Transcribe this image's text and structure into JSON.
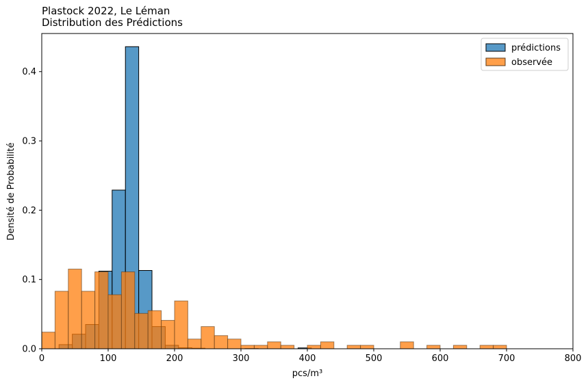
{
  "chart_data": {
    "type": "bar",
    "title_lines": [
      "Plastock 2022, Le Léman",
      "Distribution des Prédictions"
    ],
    "xlabel": "pcs/m³",
    "ylabel": "Densité de Probabilité",
    "xlim": [
      0,
      800
    ],
    "ylim": [
      0,
      0.455
    ],
    "x_ticks": [
      0,
      100,
      200,
      300,
      400,
      500,
      600,
      700,
      800
    ],
    "x_tick_labels": [
      "0",
      "100",
      "200",
      "300",
      "400",
      "500",
      "600",
      "700",
      "800"
    ],
    "y_ticks": [
      0.0,
      0.1,
      0.2,
      0.3,
      0.4
    ],
    "y_tick_labels": [
      "0.0",
      "0.1",
      "0.2",
      "0.3",
      "0.4"
    ],
    "grid": false,
    "legend_position": "top-right",
    "series": [
      {
        "name": "prédictions",
        "color": "#1f77b4",
        "edgecolor": "#000000",
        "alpha": 0.75,
        "bins": [
          {
            "x0": 26,
            "x1": 46,
            "y": 0.006
          },
          {
            "x0": 46,
            "x1": 66,
            "y": 0.021
          },
          {
            "x0": 66,
            "x1": 86,
            "y": 0.035
          },
          {
            "x0": 86,
            "x1": 106,
            "y": 0.112
          },
          {
            "x0": 106,
            "x1": 126,
            "y": 0.229
          },
          {
            "x0": 126,
            "x1": 146,
            "y": 0.436
          },
          {
            "x0": 146,
            "x1": 166,
            "y": 0.113
          },
          {
            "x0": 166,
            "x1": 186,
            "y": 0.032
          },
          {
            "x0": 186,
            "x1": 206,
            "y": 0.005
          },
          {
            "x0": 206,
            "x1": 226,
            "y": 0.0015
          },
          {
            "x0": 226,
            "x1": 246,
            "y": 0.0008
          },
          {
            "x0": 306,
            "x1": 326,
            "y": 0.0004
          },
          {
            "x0": 386,
            "x1": 406,
            "y": 0.0012
          }
        ]
      },
      {
        "name": "observée",
        "color": "#ff7f0e",
        "edgecolor": "#5a3a1a",
        "alpha": 0.75,
        "bins": [
          {
            "x0": 0,
            "x1": 20,
            "y": 0.024
          },
          {
            "x0": 20,
            "x1": 40,
            "y": 0.083
          },
          {
            "x0": 40,
            "x1": 60,
            "y": 0.115
          },
          {
            "x0": 60,
            "x1": 80,
            "y": 0.083
          },
          {
            "x0": 80,
            "x1": 100,
            "y": 0.111
          },
          {
            "x0": 100,
            "x1": 120,
            "y": 0.078
          },
          {
            "x0": 120,
            "x1": 140,
            "y": 0.111
          },
          {
            "x0": 140,
            "x1": 160,
            "y": 0.051
          },
          {
            "x0": 160,
            "x1": 180,
            "y": 0.055
          },
          {
            "x0": 180,
            "x1": 200,
            "y": 0.041
          },
          {
            "x0": 200,
            "x1": 220,
            "y": 0.069
          },
          {
            "x0": 220,
            "x1": 240,
            "y": 0.014
          },
          {
            "x0": 240,
            "x1": 260,
            "y": 0.032
          },
          {
            "x0": 260,
            "x1": 280,
            "y": 0.019
          },
          {
            "x0": 280,
            "x1": 300,
            "y": 0.014
          },
          {
            "x0": 300,
            "x1": 320,
            "y": 0.005
          },
          {
            "x0": 320,
            "x1": 340,
            "y": 0.005
          },
          {
            "x0": 340,
            "x1": 360,
            "y": 0.01
          },
          {
            "x0": 360,
            "x1": 380,
            "y": 0.005
          },
          {
            "x0": 400,
            "x1": 420,
            "y": 0.005
          },
          {
            "x0": 420,
            "x1": 440,
            "y": 0.01
          },
          {
            "x0": 460,
            "x1": 480,
            "y": 0.005
          },
          {
            "x0": 480,
            "x1": 500,
            "y": 0.005
          },
          {
            "x0": 540,
            "x1": 560,
            "y": 0.01
          },
          {
            "x0": 580,
            "x1": 600,
            "y": 0.005
          },
          {
            "x0": 620,
            "x1": 640,
            "y": 0.005
          },
          {
            "x0": 660,
            "x1": 680,
            "y": 0.005
          },
          {
            "x0": 680,
            "x1": 700,
            "y": 0.005
          }
        ]
      }
    ]
  }
}
